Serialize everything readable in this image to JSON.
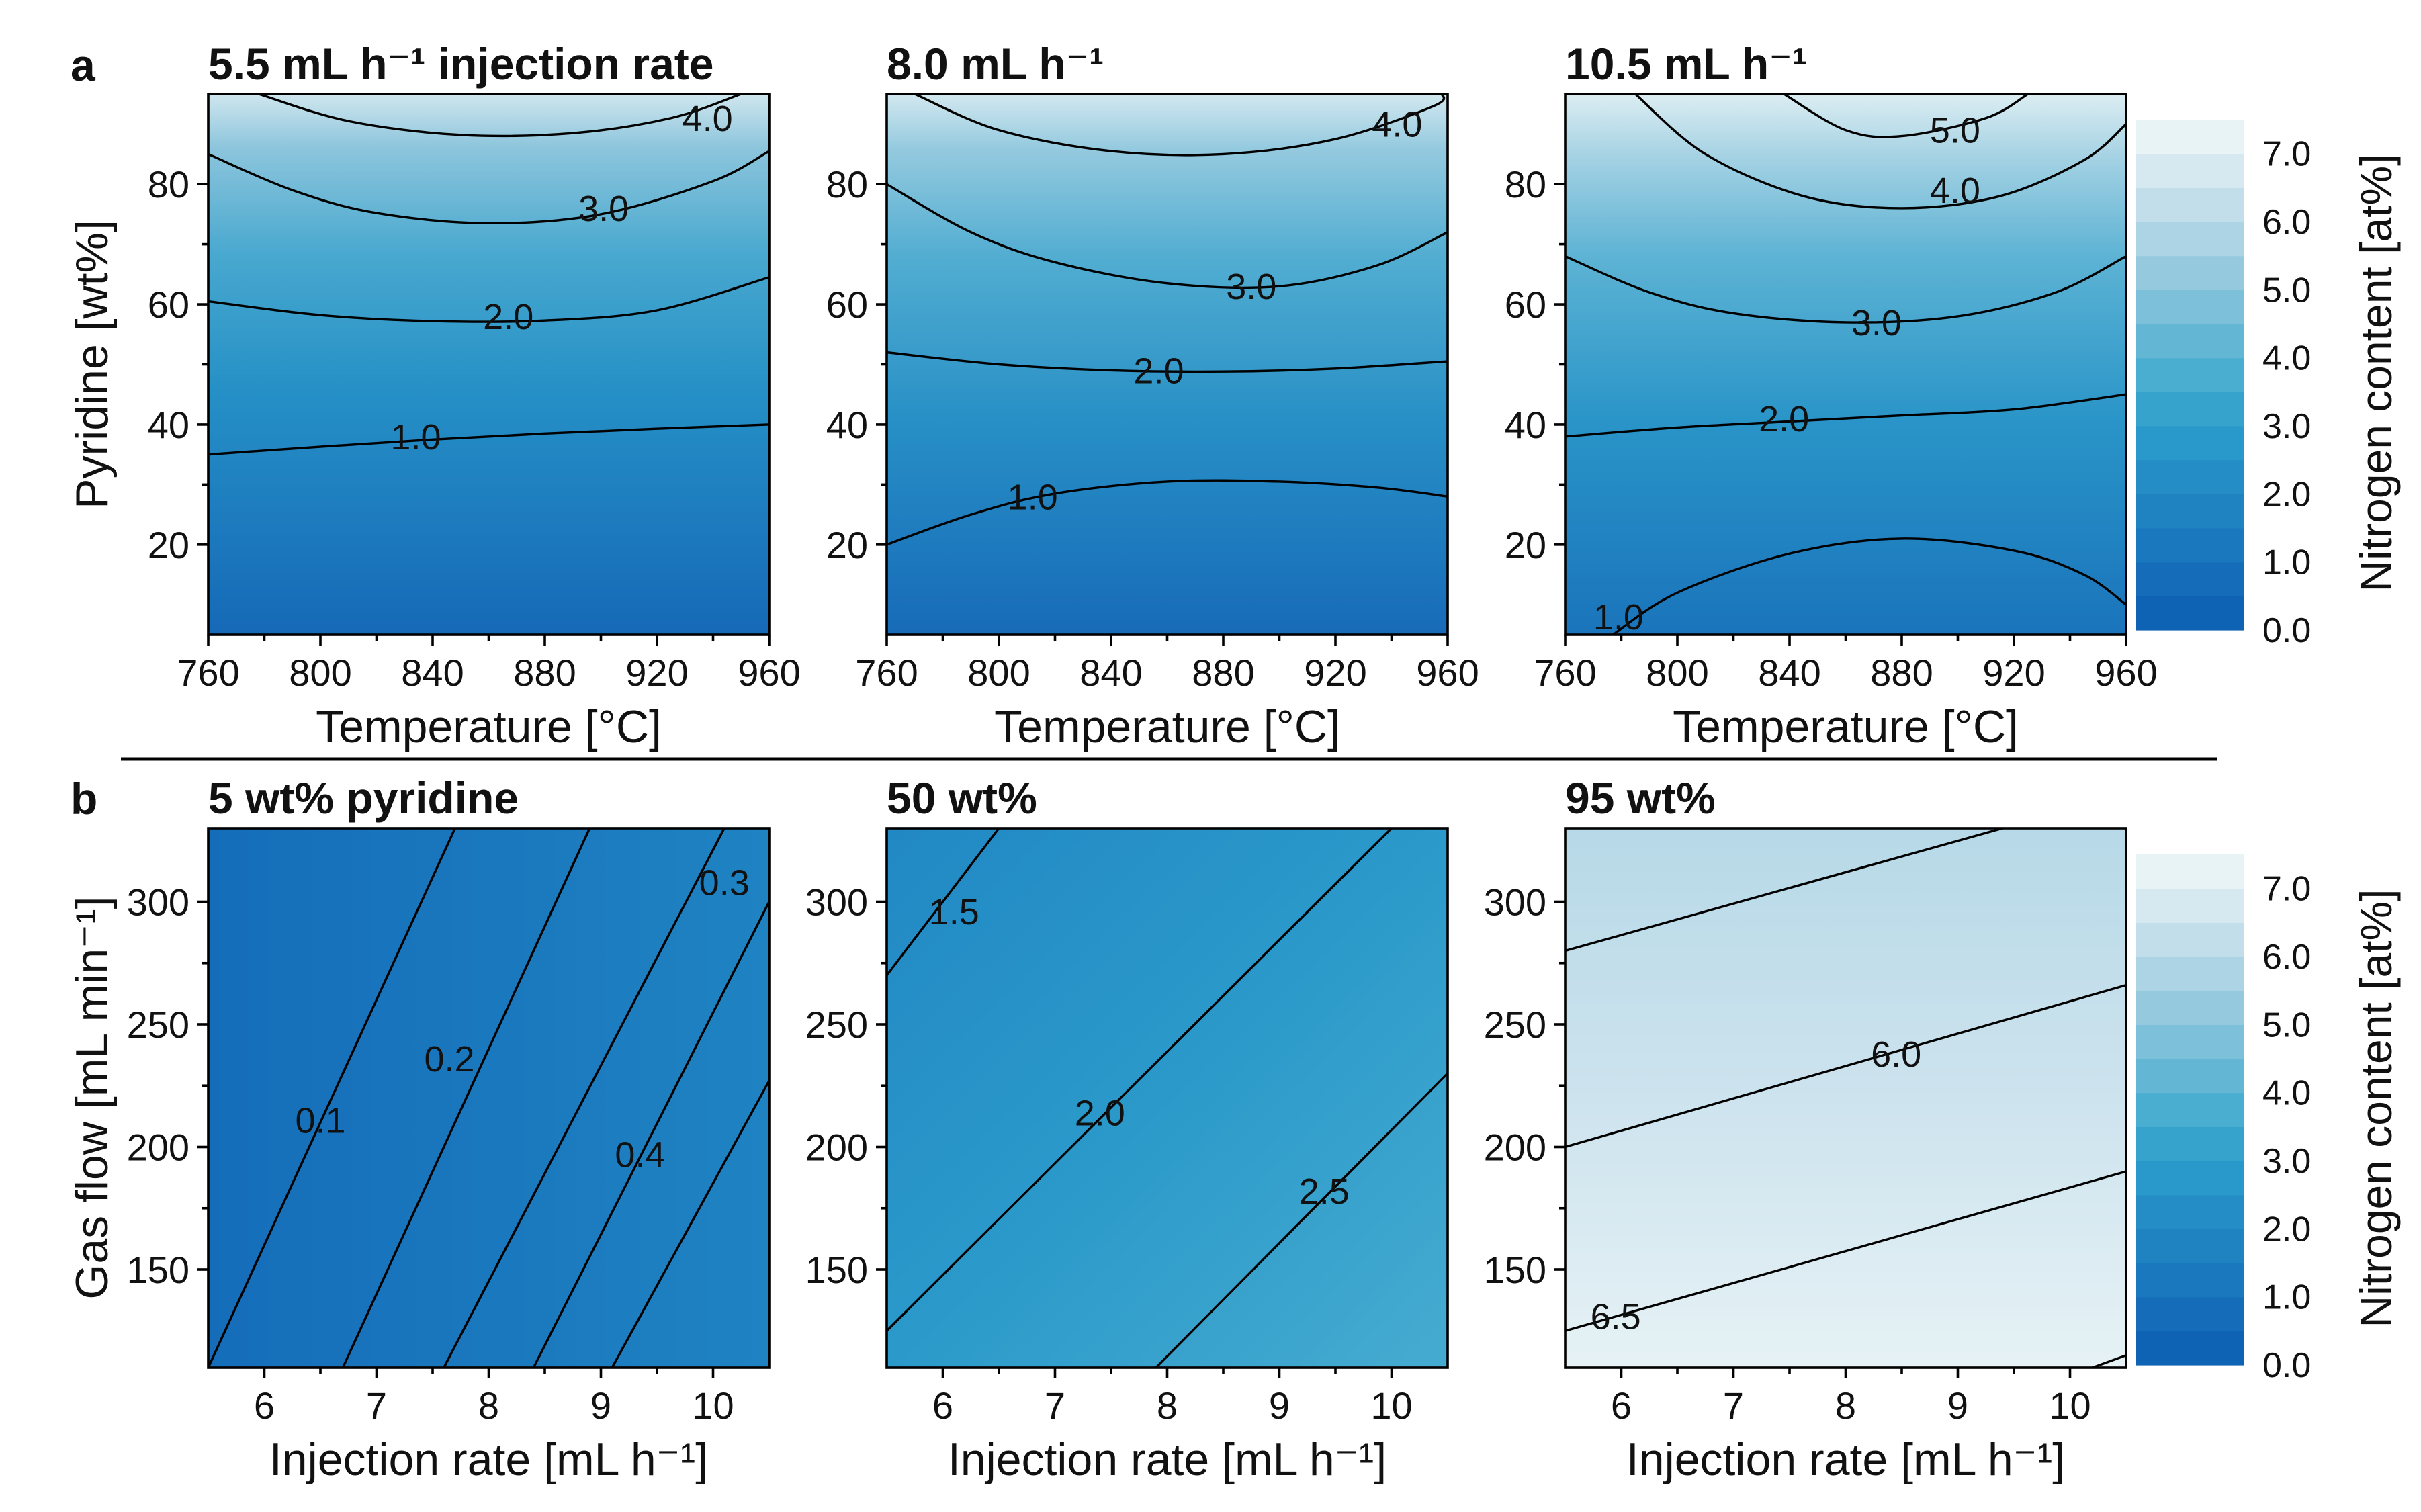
{
  "figure": {
    "panel_letters": [
      "a",
      "b"
    ],
    "divider": true
  },
  "colorbar": {
    "label": "Nitrogen content [at%]",
    "ticks": [
      "7.0",
      "6.0",
      "5.0",
      "4.0",
      "3.0",
      "2.0",
      "1.0",
      "0.0"
    ],
    "range": [
      0,
      7.5
    ],
    "colors": [
      "#0f63b4",
      "#156db9",
      "#1a78be",
      "#1f83c2",
      "#248dc6",
      "#2998ca",
      "#36a3cd",
      "#4aaed1",
      "#63b7d5",
      "#7cc0da",
      "#95cade",
      "#acd4e4",
      "#c1deea",
      "#d6e9f0",
      "#e8f3f6"
    ]
  },
  "chart_data": [
    {
      "type": "contour",
      "row": "a",
      "title": "5.5 mL h⁻¹ injection rate",
      "xlabel": "Temperature [°C]",
      "ylabel": "Pyridine [wt%]",
      "xlim": [
        760,
        960
      ],
      "ylim": [
        5,
        95
      ],
      "xticks": [
        "760",
        "800",
        "840",
        "880",
        "920",
        "960"
      ],
      "yticks": [
        "20",
        "40",
        "60",
        "80"
      ],
      "xtick_values": [
        760,
        800,
        840,
        880,
        920,
        960
      ],
      "ytick_values": [
        20,
        40,
        60,
        80
      ],
      "contours": [
        {
          "level": 1.0,
          "label": "1.0",
          "points": [
            [
              760,
              35
            ],
            [
              800,
              36.3
            ],
            [
              840,
              37.5
            ],
            [
              880,
              38.5
            ],
            [
              920,
              39.3
            ],
            [
              960,
              40
            ]
          ],
          "label_at": [
            834,
            38
          ]
        },
        {
          "level": 2.0,
          "label": "2.0",
          "points": [
            [
              760,
              60.5
            ],
            [
              800,
              58.2
            ],
            [
              840,
              57.2
            ],
            [
              880,
              57.3
            ],
            [
              920,
              59
            ],
            [
              960,
              64.5
            ]
          ],
          "label_at": [
            867,
            58
          ]
        },
        {
          "level": 3.0,
          "label": "3.0",
          "points": [
            [
              760,
              85
            ],
            [
              790,
              79
            ],
            [
              820,
              75.2
            ],
            [
              860,
              73.5
            ],
            [
              900,
              75
            ],
            [
              940,
              80.5
            ],
            [
              960,
              85.5
            ]
          ],
          "label_at": [
            901,
            76
          ]
        },
        {
          "level": 4.0,
          "label": "4.0",
          "points": [
            [
              778,
              95
            ],
            [
              810,
              90.5
            ],
            [
              850,
              88.2
            ],
            [
              890,
              88.5
            ],
            [
              925,
              91
            ],
            [
              950,
              95
            ]
          ],
          "label_at": [
            938,
            91
          ]
        }
      ]
    },
    {
      "type": "contour",
      "row": "a",
      "title": "8.0 mL h⁻¹",
      "xlabel": "Temperature [°C]",
      "ylabel": "",
      "xlim": [
        760,
        960
      ],
      "ylim": [
        5,
        95
      ],
      "xticks": [
        "760",
        "800",
        "840",
        "880",
        "920",
        "960"
      ],
      "yticks": [
        "20",
        "40",
        "60",
        "80"
      ],
      "xtick_values": [
        760,
        800,
        840,
        880,
        920,
        960
      ],
      "ytick_values": [
        20,
        40,
        60,
        80
      ],
      "contours": [
        {
          "level": 1.0,
          "label": "1.0",
          "points": [
            [
              760,
              20
            ],
            [
              790,
              25
            ],
            [
              820,
              28.5
            ],
            [
              860,
              30.5
            ],
            [
              900,
              30.5
            ],
            [
              935,
              29.5
            ],
            [
              960,
              28
            ]
          ],
          "label_at": [
            812,
            28
          ]
        },
        {
          "level": 2.0,
          "label": "2.0",
          "points": [
            [
              760,
              52
            ],
            [
              800,
              50
            ],
            [
              840,
              49
            ],
            [
              880,
              48.8
            ],
            [
              920,
              49.3
            ],
            [
              960,
              50.5
            ]
          ],
          "label_at": [
            857,
            49
          ]
        },
        {
          "level": 3.0,
          "label": "3.0",
          "points": [
            [
              760,
              80
            ],
            [
              790,
              72
            ],
            [
              820,
              67
            ],
            [
              860,
              63.5
            ],
            [
              900,
              63
            ],
            [
              935,
              66.5
            ],
            [
              960,
              72
            ]
          ],
          "label_at": [
            890,
            63
          ]
        },
        {
          "level": 4.0,
          "label": "4.0",
          "points": [
            [
              770,
              95
            ],
            [
              800,
              89
            ],
            [
              840,
              85.5
            ],
            [
              880,
              85
            ],
            [
              920,
              87.5
            ],
            [
              955,
              93
            ],
            [
              958,
              95
            ]
          ],
          "label_at": [
            942,
            90
          ]
        }
      ]
    },
    {
      "type": "contour",
      "row": "a",
      "title": "10.5 mL h⁻¹",
      "xlabel": "Temperature [°C]",
      "ylabel": "",
      "xlim": [
        760,
        960
      ],
      "ylim": [
        5,
        95
      ],
      "xticks": [
        "760",
        "800",
        "840",
        "880",
        "920",
        "960"
      ],
      "yticks": [
        "20",
        "40",
        "60",
        "80"
      ],
      "xtick_values": [
        760,
        800,
        840,
        880,
        920,
        960
      ],
      "ytick_values": [
        20,
        40,
        60,
        80
      ],
      "contours": [
        {
          "level": 1.0,
          "label": "1.0",
          "points": [
            [
              777,
              5
            ],
            [
              800,
              12
            ],
            [
              840,
              18.5
            ],
            [
              880,
              21
            ],
            [
              920,
              19
            ],
            [
              945,
              15
            ],
            [
              960,
              10
            ]
          ],
          "label_at": [
            779,
            8
          ]
        },
        {
          "level": 2.0,
          "label": "2.0",
          "points": [
            [
              760,
              38
            ],
            [
              800,
              39.5
            ],
            [
              840,
              40.5
            ],
            [
              880,
              41.5
            ],
            [
              920,
              42.5
            ],
            [
              960,
              45
            ]
          ],
          "label_at": [
            838,
            41
          ]
        },
        {
          "level": 3.0,
          "label": "3.0",
          "points": [
            [
              760,
              68
            ],
            [
              790,
              62
            ],
            [
              820,
              58.5
            ],
            [
              860,
              57
            ],
            [
              900,
              58
            ],
            [
              935,
              62
            ],
            [
              960,
              68
            ]
          ],
          "label_at": [
            871,
            57
          ]
        },
        {
          "level": 4.0,
          "label": "4.0",
          "points": [
            [
              785,
              95
            ],
            [
              810,
              85
            ],
            [
              845,
              78
            ],
            [
              880,
              76
            ],
            [
              915,
              78
            ],
            [
              945,
              84
            ],
            [
              960,
              90
            ]
          ],
          "label_at": [
            899,
            79
          ]
        },
        {
          "level": 5.0,
          "label": "5.0",
          "points": [
            [
              838,
              95
            ],
            [
              860,
              89
            ],
            [
              880,
              88
            ],
            [
              910,
              91
            ],
            [
              925,
              95
            ]
          ],
          "label_at": [
            899,
            89
          ]
        }
      ]
    },
    {
      "type": "contour",
      "row": "b",
      "title": "5 wt% pyridine",
      "xlabel": "Injection rate [mL h⁻¹]",
      "ylabel": "Gas flow [mL min⁻¹]",
      "xlim": [
        5.5,
        10.5
      ],
      "ylim": [
        110,
        330
      ],
      "xticks": [
        "6",
        "7",
        "8",
        "9",
        "10"
      ],
      "yticks": [
        "150",
        "200",
        "250",
        "300"
      ],
      "xtick_values": [
        6,
        7,
        8,
        9,
        10
      ],
      "ytick_values": [
        150,
        200,
        250,
        300
      ],
      "contours": [
        {
          "level": 0.1,
          "label": "0.1",
          "points": [
            [
              5.5,
              110
            ],
            [
              7.7,
              330
            ]
          ],
          "label_at": [
            6.5,
            211
          ]
        },
        {
          "level": 0.2,
          "label": "0.2",
          "points": [
            [
              6.7,
              110
            ],
            [
              8.9,
              330
            ]
          ],
          "label_at": [
            7.65,
            236
          ]
        },
        {
          "level": 0.3,
          "label": "0.3",
          "points": [
            [
              7.6,
              110
            ],
            [
              10.1,
              330
            ]
          ],
          "label_at": [
            10.1,
            308
          ]
        },
        {
          "level": 0.4,
          "label": "0.4",
          "points": [
            [
              8.4,
              110
            ],
            [
              10.5,
              300
            ]
          ],
          "label_at": [
            9.35,
            197
          ]
        },
        {
          "level": 0.5,
          "label": "",
          "points": [
            [
              9.1,
              110
            ],
            [
              10.5,
              227
            ]
          ],
          "label_at": null
        }
      ]
    },
    {
      "type": "contour",
      "row": "b",
      "title": "50 wt%",
      "xlabel": "Injection rate [mL h⁻¹]",
      "ylabel": "",
      "xlim": [
        5.5,
        10.5
      ],
      "ylim": [
        110,
        330
      ],
      "xticks": [
        "6",
        "7",
        "8",
        "9",
        "10"
      ],
      "yticks": [
        "150",
        "200",
        "250",
        "300"
      ],
      "xtick_values": [
        6,
        7,
        8,
        9,
        10
      ],
      "ytick_values": [
        150,
        200,
        250,
        300
      ],
      "contours": [
        {
          "level": 1.5,
          "label": "1.5",
          "points": [
            [
              5.5,
              270
            ],
            [
              6.5,
              330
            ]
          ],
          "label_at": [
            6.1,
            296
          ]
        },
        {
          "level": 2.0,
          "label": "2.0",
          "points": [
            [
              5.5,
              125
            ],
            [
              10.0,
              330
            ]
          ],
          "label_at": [
            7.4,
            214
          ]
        },
        {
          "level": 2.5,
          "label": "2.5",
          "points": [
            [
              7.9,
              110
            ],
            [
              10.5,
              230
            ]
          ],
          "label_at": [
            9.4,
            182
          ]
        }
      ]
    },
    {
      "type": "contour",
      "row": "b",
      "title": "95 wt%",
      "xlabel": "Injection rate [mL h⁻¹]",
      "ylabel": "",
      "xlim": [
        5.5,
        10.5
      ],
      "ylim": [
        110,
        330
      ],
      "xticks": [
        "6",
        "7",
        "8",
        "9",
        "10"
      ],
      "yticks": [
        "150",
        "200",
        "250",
        "300"
      ],
      "xtick_values": [
        6,
        7,
        8,
        9,
        10
      ],
      "ytick_values": [
        150,
        200,
        250,
        300
      ],
      "contours": [
        {
          "level": 5.5,
          "label": "",
          "points": [
            [
              5.5,
              280
            ],
            [
              9.4,
              330
            ]
          ],
          "label_at": null
        },
        {
          "level": 6.0,
          "label": "6.0",
          "points": [
            [
              5.5,
              200
            ],
            [
              10.5,
              266
            ]
          ],
          "label_at": [
            8.45,
            238
          ]
        },
        {
          "level": 6.5,
          "label": "6.5",
          "points": [
            [
              5.5,
              125
            ],
            [
              10.5,
              190
            ]
          ],
          "label_at": [
            5.95,
            131
          ]
        },
        {
          "level": 7.0,
          "label": "",
          "points": [
            [
              10.2,
              110
            ],
            [
              10.5,
              115
            ]
          ],
          "label_at": null
        }
      ]
    }
  ]
}
